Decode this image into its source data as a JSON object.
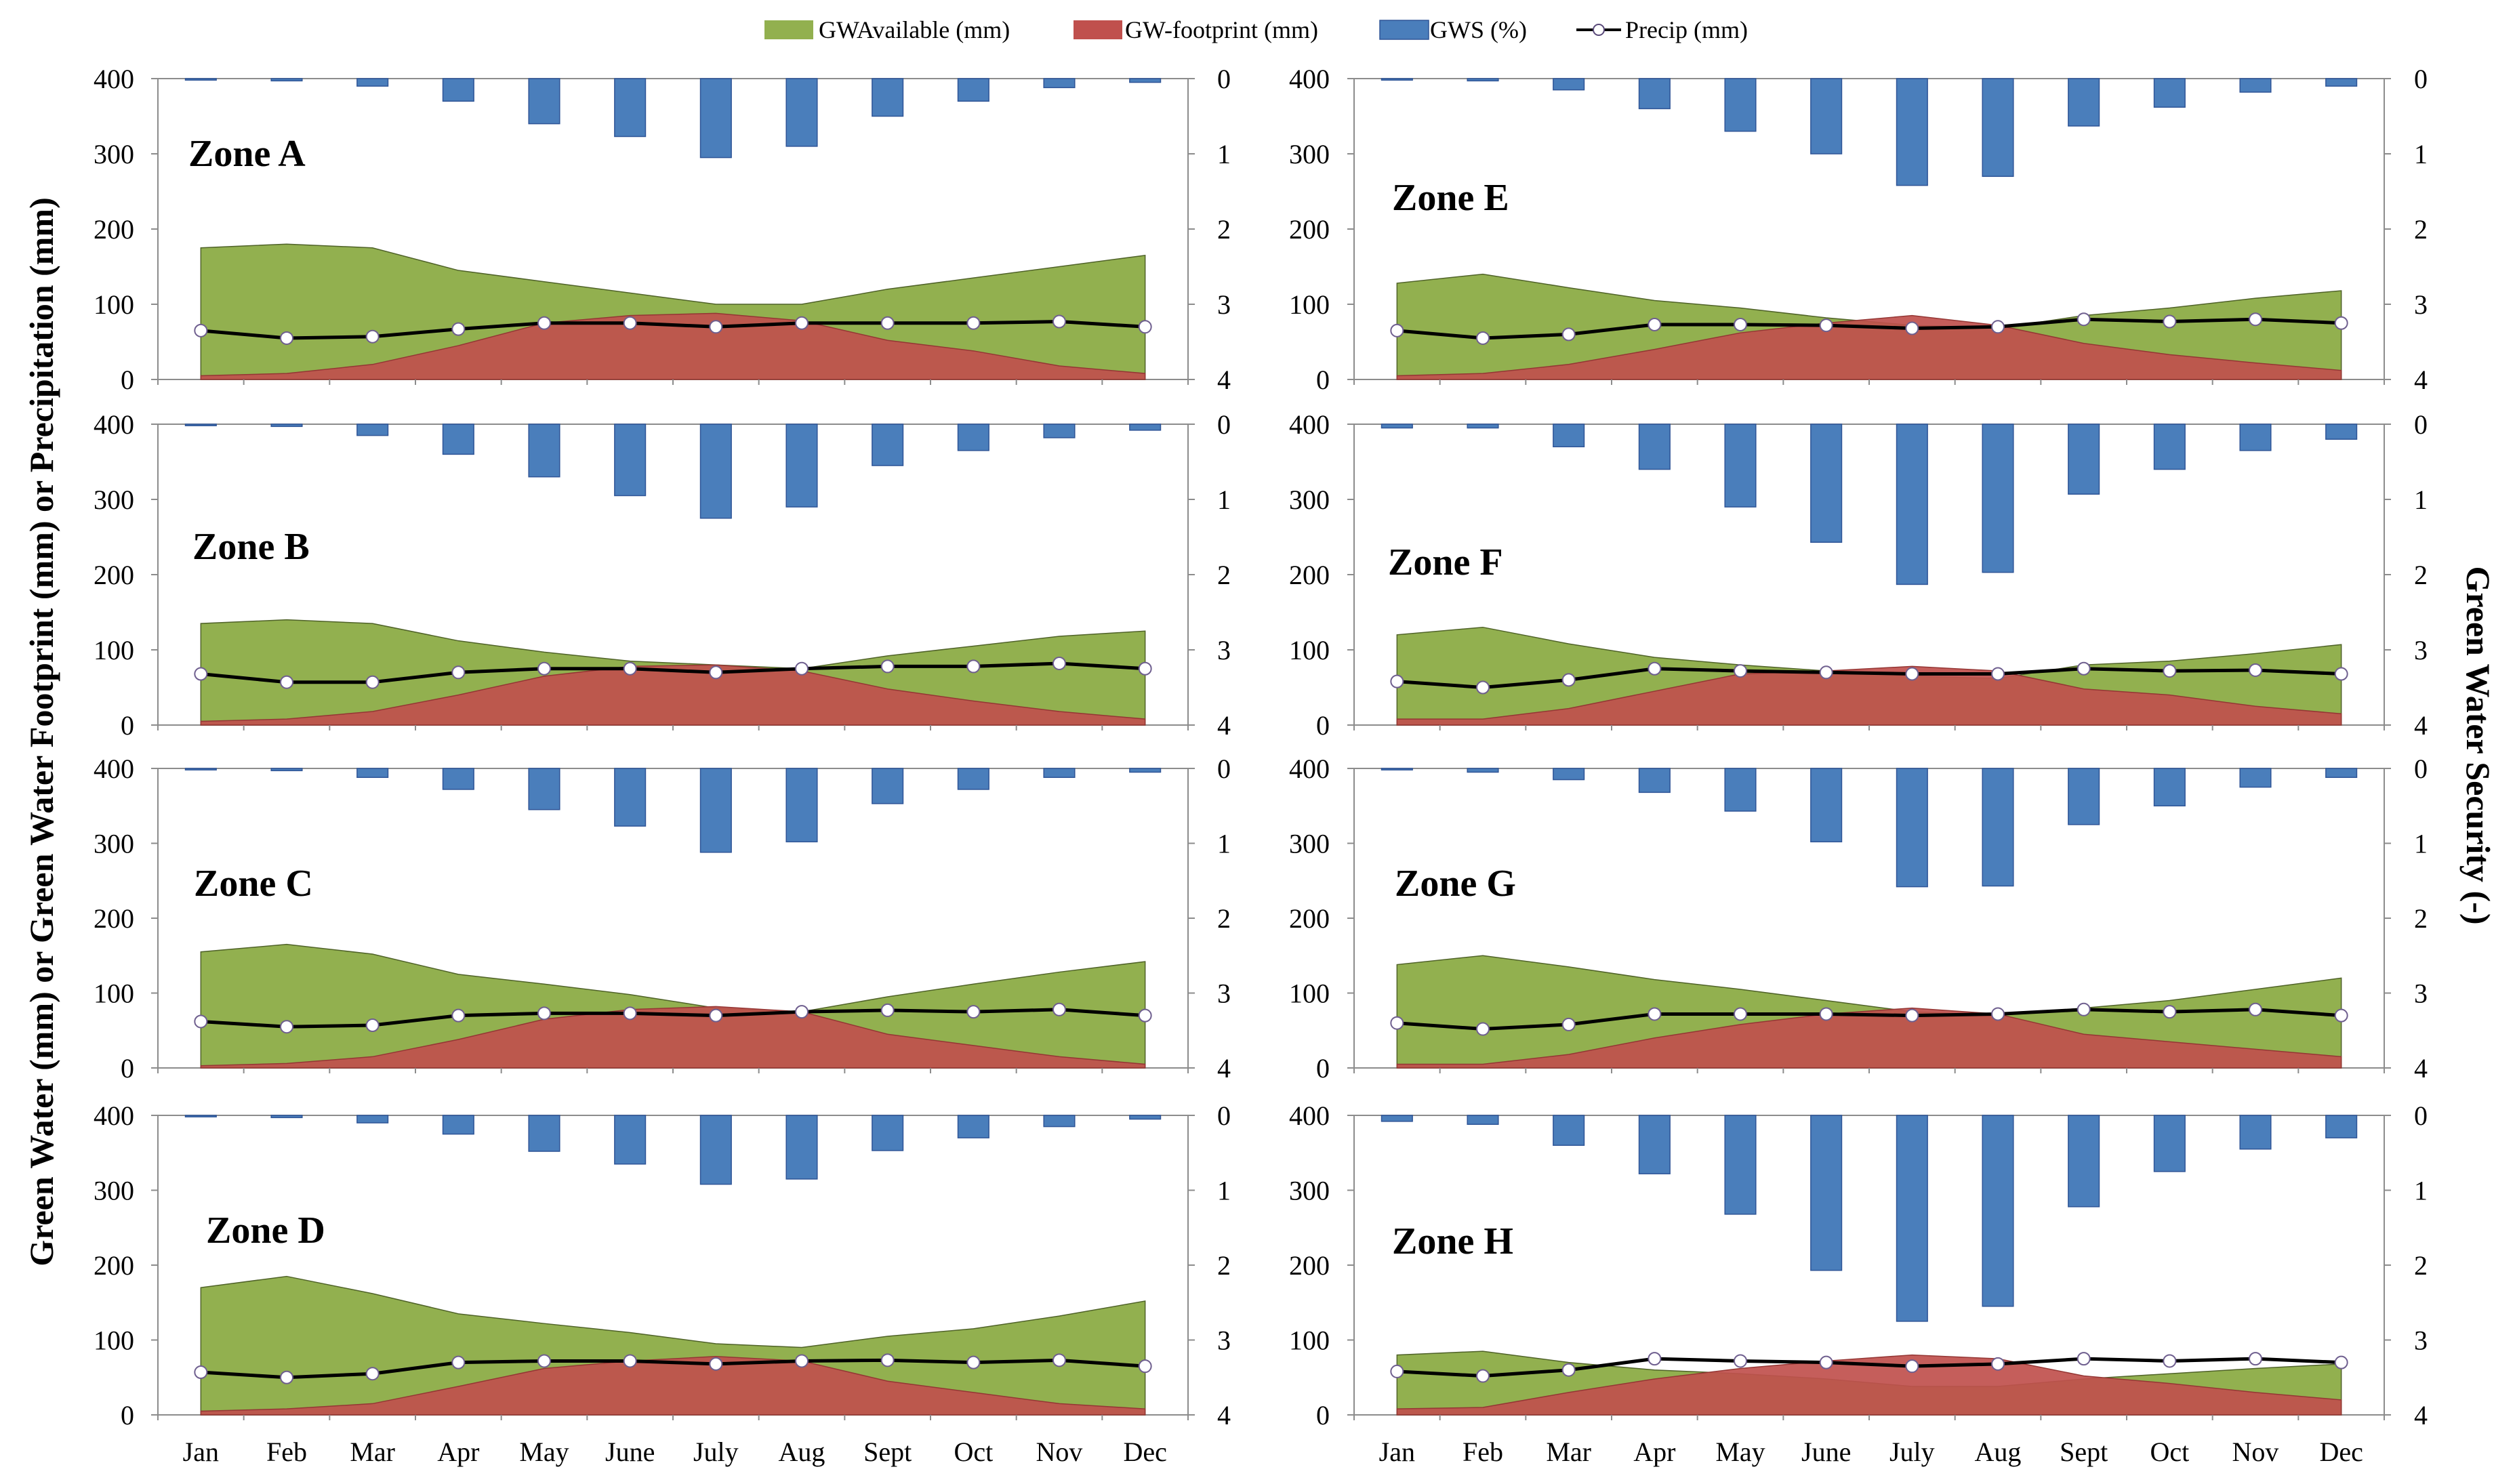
{
  "chart_data": {
    "type": "bar+area+line",
    "xlabel": "",
    "ylabel_left": "Green Water (mm) or Green Water Footprint (mm) or Precipitation (mm)",
    "ylabel_right": "Green Water Security (-)",
    "left_axis": {
      "ylim": [
        0,
        400
      ],
      "ticks": [
        "0",
        "100",
        "200",
        "300",
        "400"
      ]
    },
    "right_axis": {
      "ylim": [
        0,
        4
      ],
      "inverted": true,
      "ticks": [
        "0",
        "1",
        "2",
        "3",
        "4"
      ]
    },
    "categories": [
      "Jan",
      "Feb",
      "Mar",
      "Apr",
      "May",
      "June",
      "July",
      "Aug",
      "Sept",
      "Oct",
      "Nov",
      "Dec"
    ],
    "grid": false,
    "legend": {
      "placement": "top-center",
      "items": [
        {
          "label": "GWAvailable (mm)",
          "color": "#92b04f",
          "marker": "area"
        },
        {
          "label": "GW-footprint (mm)",
          "color": "#c0504d",
          "marker": "area"
        },
        {
          "label": "GWS (%)",
          "color": "#4a7ebb",
          "marker": "bar"
        },
        {
          "label": "Precip (mm)",
          "color": "#000000",
          "marker": "line"
        }
      ]
    },
    "colors": {
      "available": "#92b04f",
      "footprint": "#c0504d",
      "gws": "#4a7ebb",
      "precip": "#000000"
    },
    "panels": [
      {
        "name": "Zone A",
        "gw_available": [
          175,
          180,
          175,
          145,
          130,
          115,
          100,
          100,
          120,
          135,
          150,
          165
        ],
        "gw_footprint": [
          5,
          8,
          20,
          45,
          75,
          85,
          88,
          78,
          52,
          38,
          18,
          8
        ],
        "precip": [
          65,
          55,
          57,
          67,
          75,
          75,
          70,
          75,
          75,
          75,
          77,
          70
        ],
        "gws": [
          0.02,
          0.03,
          0.1,
          0.3,
          0.6,
          0.77,
          1.05,
          0.9,
          0.5,
          0.3,
          0.12,
          0.05
        ]
      },
      {
        "name": "Zone B",
        "gw_available": [
          135,
          140,
          135,
          112,
          97,
          85,
          80,
          75,
          92,
          105,
          118,
          125
        ],
        "gw_footprint": [
          5,
          8,
          18,
          40,
          65,
          78,
          80,
          72,
          48,
          32,
          18,
          8
        ],
        "precip": [
          68,
          57,
          57,
          70,
          75,
          75,
          70,
          75,
          78,
          78,
          82,
          75
        ],
        "gws": [
          0.02,
          0.03,
          0.15,
          0.4,
          0.7,
          0.95,
          1.25,
          1.1,
          0.55,
          0.35,
          0.18,
          0.08
        ]
      },
      {
        "name": "Zone C",
        "gw_available": [
          155,
          165,
          152,
          125,
          112,
          98,
          80,
          75,
          95,
          112,
          128,
          142
        ],
        "gw_footprint": [
          3,
          6,
          15,
          38,
          65,
          78,
          82,
          75,
          45,
          30,
          15,
          5
        ],
        "precip": [
          62,
          55,
          57,
          70,
          73,
          73,
          70,
          75,
          77,
          75,
          78,
          70
        ],
        "gws": [
          0.02,
          0.03,
          0.12,
          0.28,
          0.55,
          0.77,
          1.12,
          0.98,
          0.47,
          0.28,
          0.12,
          0.05
        ]
      },
      {
        "name": "Zone D",
        "gw_available": [
          170,
          185,
          162,
          135,
          122,
          110,
          95,
          90,
          105,
          115,
          132,
          152
        ],
        "gw_footprint": [
          5,
          8,
          15,
          38,
          62,
          72,
          78,
          72,
          45,
          30,
          15,
          8
        ],
        "precip": [
          57,
          50,
          55,
          70,
          72,
          72,
          68,
          72,
          73,
          70,
          73,
          65
        ],
        "gws": [
          0.02,
          0.03,
          0.1,
          0.25,
          0.48,
          0.65,
          0.92,
          0.85,
          0.47,
          0.3,
          0.15,
          0.05
        ]
      },
      {
        "name": "Zone E",
        "gw_available": [
          128,
          140,
          122,
          105,
          95,
          82,
          72,
          68,
          85,
          95,
          108,
          118
        ],
        "gw_footprint": [
          5,
          8,
          20,
          40,
          62,
          75,
          85,
          72,
          48,
          33,
          22,
          12
        ],
        "precip": [
          65,
          55,
          60,
          73,
          73,
          72,
          68,
          70,
          80,
          77,
          80,
          75
        ],
        "gws": [
          0.02,
          0.03,
          0.15,
          0.4,
          0.7,
          1.0,
          1.42,
          1.3,
          0.63,
          0.38,
          0.18,
          0.1
        ]
      },
      {
        "name": "Zone F",
        "gw_available": [
          120,
          130,
          108,
          90,
          80,
          72,
          65,
          62,
          80,
          85,
          95,
          107
        ],
        "gw_footprint": [
          8,
          8,
          22,
          45,
          68,
          72,
          78,
          72,
          48,
          40,
          25,
          15
        ],
        "precip": [
          58,
          50,
          60,
          75,
          72,
          70,
          68,
          68,
          75,
          72,
          73,
          68
        ],
        "gws": [
          0.05,
          0.05,
          0.3,
          0.6,
          1.1,
          1.57,
          2.13,
          1.97,
          0.93,
          0.6,
          0.35,
          0.2
        ]
      },
      {
        "name": "Zone G",
        "gw_available": [
          138,
          150,
          135,
          118,
          105,
          90,
          75,
          70,
          80,
          90,
          105,
          120
        ],
        "gw_footprint": [
          5,
          5,
          18,
          40,
          58,
          72,
          80,
          72,
          45,
          35,
          25,
          15
        ],
        "precip": [
          60,
          52,
          58,
          72,
          72,
          72,
          70,
          72,
          78,
          75,
          78,
          70
        ],
        "gws": [
          0.02,
          0.05,
          0.15,
          0.32,
          0.57,
          0.98,
          1.58,
          1.57,
          0.75,
          0.5,
          0.25,
          0.12
        ]
      },
      {
        "name": "Zone H",
        "gw_available": [
          80,
          85,
          70,
          60,
          55,
          48,
          38,
          38,
          48,
          55,
          62,
          68
        ],
        "gw_footprint": [
          8,
          10,
          30,
          48,
          62,
          72,
          80,
          75,
          52,
          42,
          30,
          20
        ],
        "precip": [
          58,
          52,
          60,
          75,
          72,
          70,
          65,
          68,
          75,
          72,
          75,
          70
        ],
        "gws": [
          0.08,
          0.12,
          0.4,
          0.78,
          1.32,
          2.07,
          2.75,
          2.55,
          1.22,
          0.75,
          0.45,
          0.3
        ]
      }
    ]
  }
}
